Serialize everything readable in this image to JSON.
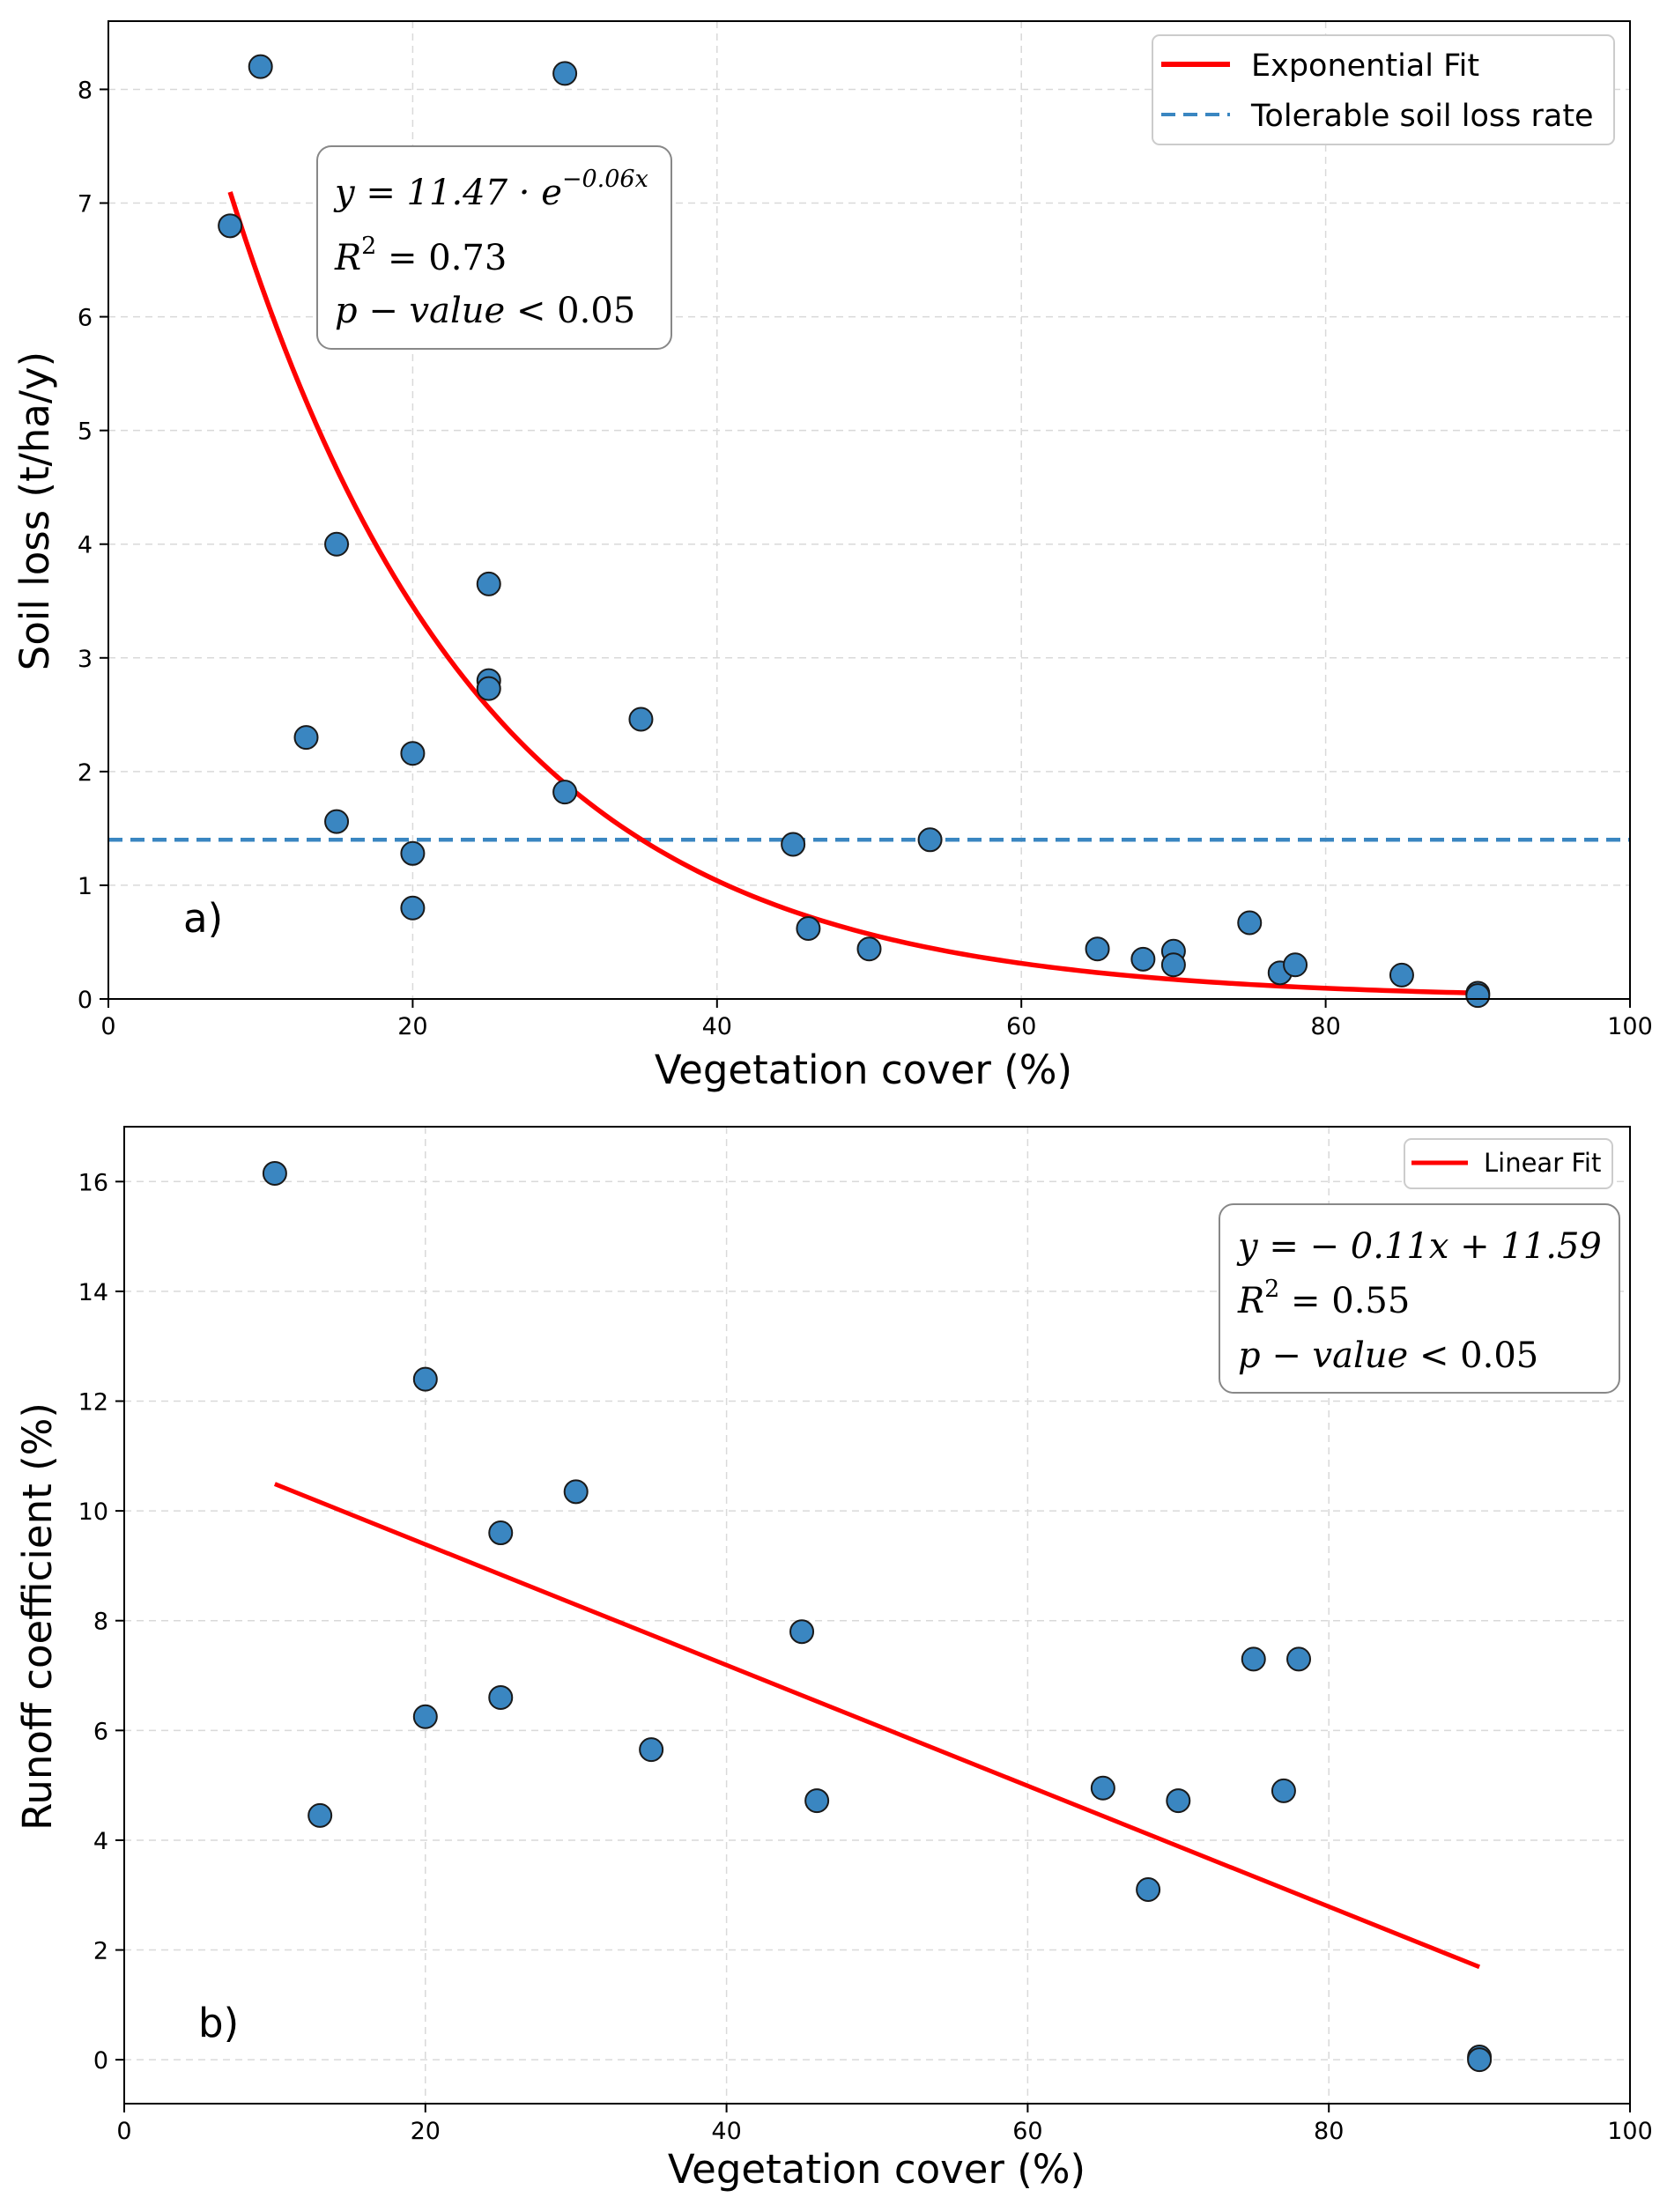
{
  "colors": {
    "points": "#3a86c1",
    "point_edge": "#1a1a1a",
    "fit": "#ff0000",
    "threshold": "#3a86c1",
    "grid": "#d9d9d9"
  },
  "chart_data": [
    {
      "type": "scatter",
      "panel_label": "a)",
      "xlabel": "Vegetation cover (%)",
      "ylabel": "Soil loss (t/ha/y)",
      "xlim": [
        0,
        100
      ],
      "ylim": [
        0,
        8.6
      ],
      "xticks": [
        0,
        20,
        40,
        60,
        80,
        100
      ],
      "yticks": [
        0,
        1,
        2,
        3,
        4,
        5,
        6,
        7,
        8
      ],
      "grid": true,
      "legend_position": "top-right",
      "legend": [
        {
          "label": "Exponential Fit",
          "style": "solid-red"
        },
        {
          "label": "Tolerable soil loss rate",
          "style": "dashed-blue"
        }
      ],
      "annotation": {
        "equation_lhs": "y = 11.47 · e",
        "equation_exp": "−0.06x",
        "r2_label": "R",
        "r2_sup": "2",
        "r2_value": " = 0.73",
        "p_label": "p − value",
        "p_value": " < 0.05"
      },
      "fit": {
        "kind": "exponential",
        "a": 11.47,
        "b": -0.06,
        "x_range": [
          8,
          90
        ]
      },
      "threshold": 1.4,
      "points": [
        [
          8,
          6.8
        ],
        [
          10,
          8.2
        ],
        [
          13,
          2.3
        ],
        [
          15,
          4.0
        ],
        [
          15,
          1.56
        ],
        [
          20,
          2.16
        ],
        [
          20,
          1.28
        ],
        [
          20,
          0.8
        ],
        [
          25,
          3.65
        ],
        [
          25,
          2.8
        ],
        [
          25,
          2.73
        ],
        [
          30,
          8.14
        ],
        [
          30,
          1.82
        ],
        [
          35,
          2.46
        ],
        [
          45,
          1.36
        ],
        [
          46,
          0.62
        ],
        [
          50,
          0.44
        ],
        [
          54,
          1.4
        ],
        [
          65,
          0.44
        ],
        [
          68,
          0.35
        ],
        [
          70,
          0.42
        ],
        [
          70,
          0.3
        ],
        [
          75,
          0.67
        ],
        [
          77,
          0.23
        ],
        [
          78,
          0.3
        ],
        [
          85,
          0.21
        ],
        [
          90,
          0.05
        ],
        [
          90,
          0.03
        ]
      ]
    },
    {
      "type": "scatter",
      "panel_label": "b)",
      "xlabel": "Vegetation cover (%)",
      "ylabel": "Runoff coefficient (%)",
      "xlim": [
        0,
        100
      ],
      "ylim": [
        -0.8,
        17
      ],
      "xticks": [
        0,
        20,
        40,
        60,
        80,
        100
      ],
      "yticks": [
        0,
        2,
        4,
        6,
        8,
        10,
        12,
        14,
        16
      ],
      "grid": true,
      "legend_position": "top-right",
      "legend": [
        {
          "label": "Linear Fit",
          "style": "solid-red"
        }
      ],
      "annotation": {
        "equation_lhs": "y = − 0.11x + 11.59",
        "r2_label": "R",
        "r2_sup": "2",
        "r2_value": " = 0.55",
        "p_label": "p − value",
        "p_value": " < 0.05"
      },
      "fit": {
        "kind": "linear",
        "slope": -0.11,
        "intercept": 11.59,
        "x_range": [
          10,
          90
        ]
      },
      "points": [
        [
          10,
          16.15
        ],
        [
          13,
          4.45
        ],
        [
          20,
          12.4
        ],
        [
          20,
          6.25
        ],
        [
          25,
          9.6
        ],
        [
          25,
          6.6
        ],
        [
          30,
          10.35
        ],
        [
          35,
          5.65
        ],
        [
          45,
          7.8
        ],
        [
          46,
          4.72
        ],
        [
          65,
          4.95
        ],
        [
          68,
          3.1
        ],
        [
          70,
          4.72
        ],
        [
          75,
          7.3
        ],
        [
          77,
          4.9
        ],
        [
          78,
          7.3
        ],
        [
          90,
          0.05
        ],
        [
          90,
          0.0
        ]
      ]
    }
  ]
}
